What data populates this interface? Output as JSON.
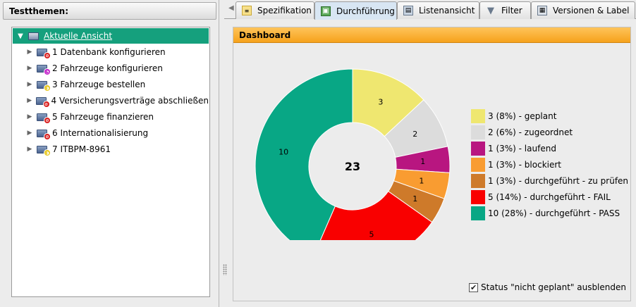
{
  "left": {
    "header": "Testthemen:",
    "root": "Aktuelle Ansicht",
    "items": [
      {
        "label": "1 Datenbank konfigurieren",
        "badge_color": "#d81c1c",
        "badge_glyph": "⊘"
      },
      {
        "label": "2 Fahrzeuge konfigurieren",
        "badge_color": "#c21cc8",
        "badge_glyph": "◔"
      },
      {
        "label": "3 Fahrzeuge bestellen",
        "badge_color": "#e6c61a",
        "badge_glyph": "◑"
      },
      {
        "label": "4 Versicherungsverträge abschließen",
        "badge_color": "#d81c1c",
        "badge_glyph": "⊘"
      },
      {
        "label": "5 Fahrzeuge finanzieren",
        "badge_color": "#d81c1c",
        "badge_glyph": "⊘"
      },
      {
        "label": "6 Internationalisierung",
        "badge_color": "#d81c1c",
        "badge_glyph": "⊘"
      },
      {
        "label": "7 ITBPM-8961",
        "badge_color": "#e6c61a",
        "badge_glyph": "◑"
      }
    ]
  },
  "tabs": [
    {
      "label": "Spezifikation",
      "icon": "list-icon",
      "active": false
    },
    {
      "label": "Durchführung",
      "icon": "execution-icon",
      "active": true
    },
    {
      "label": "Listenansicht",
      "icon": "table-icon",
      "active": false
    },
    {
      "label": "Filter",
      "icon": "filter-icon",
      "active": false
    },
    {
      "label": "Versionen & Label",
      "icon": "versions-icon",
      "active": false
    }
  ],
  "dashboard": {
    "title": "Dashboard",
    "hide_label": "Status \"nicht geplant\" ausblenden",
    "hide_checked": true
  },
  "chart_data": {
    "type": "pie",
    "total": 23,
    "series": [
      {
        "name": "3 (8%) - geplant",
        "value": 3,
        "color": "#efe770"
      },
      {
        "name": "2 (6%) - zugeordnet",
        "value": 2,
        "color": "#dcdcdc"
      },
      {
        "name": "1 (3%) - laufend",
        "value": 1,
        "color": "#b81680"
      },
      {
        "name": "1 (3%) - blockiert",
        "value": 1,
        "color": "#f99c31"
      },
      {
        "name": "1 (3%) - durchgeführt - zu prüfen",
        "value": 1,
        "color": "#ce7a2a"
      },
      {
        "name": "5 (14%) - durchgeführt - FAIL",
        "value": 5,
        "color": "#f90000"
      },
      {
        "name": "10 (28%) - durchgeführt - PASS",
        "value": 10,
        "color": "#08a785"
      }
    ]
  }
}
